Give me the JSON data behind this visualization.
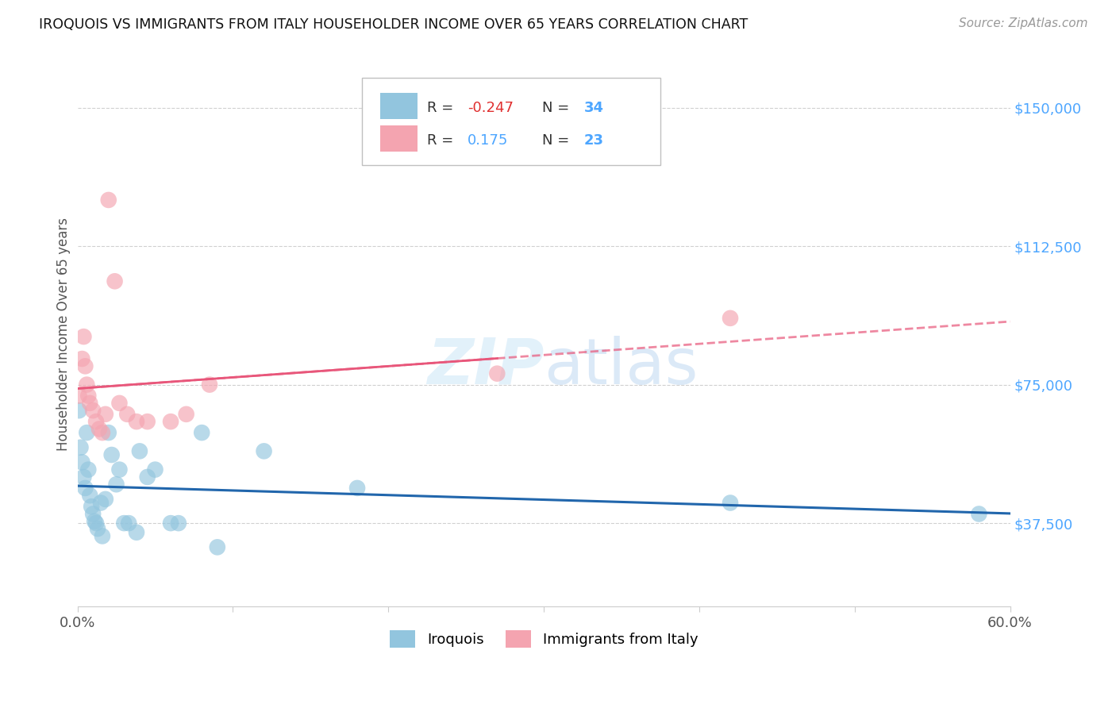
{
  "title": "IROQUOIS VS IMMIGRANTS FROM ITALY HOUSEHOLDER INCOME OVER 65 YEARS CORRELATION CHART",
  "source": "Source: ZipAtlas.com",
  "ylabel": "Householder Income Over 65 years",
  "xmin": 0.0,
  "xmax": 0.6,
  "ymin": 15000,
  "ymax": 162500,
  "yticks": [
    37500,
    75000,
    112500,
    150000
  ],
  "ytick_labels": [
    "$37,500",
    "$75,000",
    "$112,500",
    "$150,000"
  ],
  "xticks": [
    0.0,
    0.1,
    0.2,
    0.3,
    0.4,
    0.5,
    0.6
  ],
  "xtick_labels": [
    "0.0%",
    "",
    "",
    "",
    "",
    "",
    "60.0%"
  ],
  "color_blue": "#92c5de",
  "color_pink": "#f4a4b0",
  "color_blue_line": "#2166ac",
  "color_pink_line": "#e8567a",
  "color_axis_labels": "#4da6ff",
  "color_grid": "#d0d0d0",
  "iroquois_x": [
    0.001,
    0.002,
    0.003,
    0.004,
    0.005,
    0.006,
    0.007,
    0.008,
    0.009,
    0.01,
    0.011,
    0.012,
    0.013,
    0.015,
    0.016,
    0.018,
    0.02,
    0.022,
    0.025,
    0.027,
    0.03,
    0.033,
    0.038,
    0.04,
    0.045,
    0.05,
    0.06,
    0.065,
    0.08,
    0.09,
    0.12,
    0.18,
    0.42,
    0.58
  ],
  "iroquois_y": [
    68000,
    58000,
    54000,
    50000,
    47000,
    62000,
    52000,
    45000,
    42000,
    40000,
    38000,
    37500,
    36000,
    43000,
    34000,
    44000,
    62000,
    56000,
    48000,
    52000,
    37500,
    37500,
    35000,
    57000,
    50000,
    52000,
    37500,
    37500,
    62000,
    31000,
    57000,
    47000,
    43000,
    40000
  ],
  "italy_x": [
    0.001,
    0.003,
    0.004,
    0.005,
    0.006,
    0.007,
    0.008,
    0.01,
    0.012,
    0.014,
    0.016,
    0.018,
    0.02,
    0.024,
    0.027,
    0.032,
    0.038,
    0.045,
    0.06,
    0.07,
    0.085,
    0.27,
    0.42
  ],
  "italy_y": [
    72000,
    82000,
    88000,
    80000,
    75000,
    72000,
    70000,
    68000,
    65000,
    63000,
    62000,
    67000,
    125000,
    103000,
    70000,
    67000,
    65000,
    65000,
    65000,
    67000,
    75000,
    78000,
    93000
  ]
}
